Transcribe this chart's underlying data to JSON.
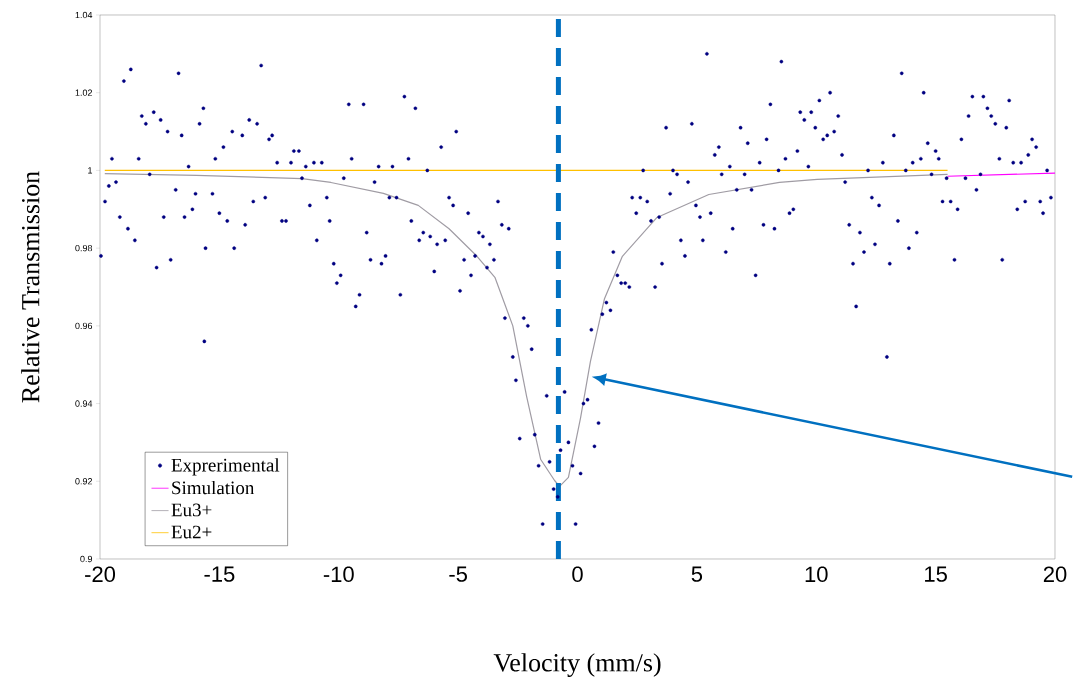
{
  "chart_data": {
    "type": "scatter",
    "xlabel": "Velocity (mm/s)",
    "ylabel": "Relative Transmission",
    "xlim": [
      -20,
      20
    ],
    "ylim": [
      0.9,
      1.04
    ],
    "xticks": [
      -20,
      -15,
      -10,
      -5,
      0,
      5,
      10,
      15,
      20
    ],
    "yticks": [
      0.9,
      0.92,
      0.94,
      0.96,
      0.98,
      1,
      1.02,
      1.04
    ],
    "grid": false,
    "legend": "bottom left",
    "ref_lines": [
      {
        "axis": "x",
        "value": -0.8,
        "color": "#0070c0",
        "line_style": "dashed"
      }
    ],
    "series": [
      {
        "name": "Exprerimental",
        "marker": "circle",
        "color": "#000080",
        "x": [
          -19.96,
          -19.79,
          -19.63,
          -19.5,
          -19.33,
          -19.17,
          -19.0,
          -18.83,
          -18.71,
          -18.54,
          -18.38,
          -18.25,
          -18.08,
          -17.92,
          -17.75,
          -17.63,
          -17.46,
          -17.33,
          -17.17,
          -17.04,
          -16.83,
          -16.71,
          -16.58,
          -16.46,
          -16.29,
          -16.13,
          -16.0,
          -15.83,
          -15.67,
          -15.63,
          -15.58,
          -15.29,
          -15.17,
          -15.0,
          -14.83,
          -14.67,
          -14.46,
          -14.38,
          -14.04,
          -13.92,
          -13.75,
          -13.58,
          -13.42,
          -13.25,
          -13.08,
          -12.92,
          -12.79,
          -12.58,
          -12.38,
          -12.21,
          -12.0,
          -11.88,
          -11.67,
          -11.54,
          -11.38,
          -11.21,
          -11.04,
          -10.92,
          -10.71,
          -10.5,
          -10.38,
          -10.21,
          -10.08,
          -9.92,
          -9.79,
          -9.58,
          -9.46,
          -9.29,
          -9.13,
          -8.96,
          -8.83,
          -8.67,
          -8.5,
          -8.33,
          -8.21,
          -8.04,
          -7.88,
          -7.75,
          -7.58,
          -7.42,
          -7.25,
          -7.08,
          -6.96,
          -6.79,
          -6.63,
          -6.46,
          -6.29,
          -6.17,
          -6.0,
          -5.88,
          -5.71,
          -5.54,
          -5.38,
          -5.21,
          -5.08,
          -4.92,
          -4.75,
          -4.58,
          -4.46,
          -4.29,
          -4.13,
          -3.96,
          -3.79,
          -3.67,
          -3.5,
          -3.33,
          -3.17,
          -3.04,
          -2.88,
          -2.71,
          -2.58,
          -2.42,
          -2.25,
          -2.08,
          -1.92,
          -1.79,
          -1.63,
          -1.46,
          -1.29,
          -1.17,
          -1.0,
          -0.83,
          -0.71,
          -0.54,
          -0.38,
          -0.21,
          -0.08,
          0.13,
          0.25,
          0.42,
          0.58,
          0.71,
          0.88,
          1.04,
          1.21,
          1.38,
          1.5,
          1.67,
          1.83,
          2.0,
          2.17,
          2.29,
          2.46,
          2.63,
          2.75,
          2.92,
          3.08,
          3.25,
          3.42,
          3.54,
          3.71,
          3.88,
          4.0,
          4.17,
          4.33,
          4.5,
          4.63,
          4.79,
          4.96,
          5.13,
          5.25,
          5.42,
          5.58,
          5.75,
          5.92,
          6.04,
          6.21,
          6.38,
          6.5,
          6.67,
          6.83,
          7.0,
          7.13,
          7.29,
          7.46,
          7.63,
          7.79,
          7.92,
          8.08,
          8.25,
          8.42,
          8.54,
          8.71,
          8.88,
          9.04,
          9.21,
          9.33,
          9.5,
          9.67,
          9.79,
          9.96,
          10.13,
          10.29,
          10.46,
          10.58,
          10.75,
          10.92,
          11.08,
          11.21,
          11.38,
          11.54,
          11.67,
          11.83,
          12.0,
          12.17,
          12.33,
          12.46,
          12.63,
          12.79,
          12.96,
          13.08,
          13.25,
          13.42,
          13.58,
          13.75,
          13.88,
          14.04,
          14.21,
          14.38,
          14.5,
          14.67,
          14.83,
          15.0,
          15.13,
          15.29,
          15.46,
          15.63,
          15.79,
          15.92,
          16.08,
          16.25,
          16.38,
          16.54,
          16.71,
          16.88,
          17.0,
          17.17,
          17.33,
          17.5,
          17.67,
          17.79,
          17.96,
          18.08,
          18.25,
          18.42,
          18.58,
          18.75,
          18.88,
          19.04,
          19.21,
          19.38,
          19.5,
          19.67,
          19.83
        ],
        "values": [
          0.978,
          0.992,
          0.996,
          1.003,
          0.997,
          0.988,
          1.023,
          0.985,
          1.026,
          0.982,
          1.003,
          1.014,
          1.012,
          0.999,
          1.015,
          0.975,
          1.013,
          0.988,
          1.01,
          0.977,
          0.995,
          1.025,
          1.009,
          0.988,
          1.001,
          0.99,
          0.994,
          1.012,
          1.016,
          0.956,
          0.98,
          0.994,
          1.003,
          0.989,
          1.006,
          0.987,
          1.01,
          0.98,
          1.009,
          0.986,
          1.013,
          0.992,
          1.012,
          1.027,
          0.993,
          1.008,
          1.009,
          1.002,
          0.987,
          0.987,
          1.002,
          1.005,
          1.005,
          0.998,
          1.001,
          0.991,
          1.002,
          0.982,
          1.002,
          0.993,
          0.987,
          0.976,
          0.971,
          0.973,
          0.998,
          1.017,
          1.003,
          0.965,
          0.968,
          1.017,
          0.984,
          0.977,
          0.997,
          1.001,
          0.976,
          0.978,
          0.993,
          1.001,
          0.993,
          0.968,
          1.019,
          1.003,
          0.987,
          1.016,
          0.982,
          0.984,
          1.0,
          0.983,
          0.974,
          0.981,
          1.006,
          0.982,
          0.993,
          0.991,
          1.01,
          0.969,
          0.977,
          0.989,
          0.973,
          0.978,
          0.984,
          0.983,
          0.975,
          0.981,
          0.977,
          0.992,
          0.986,
          0.962,
          0.985,
          0.952,
          0.946,
          0.931,
          0.962,
          0.96,
          0.954,
          0.932,
          0.924,
          0.909,
          0.942,
          0.925,
          0.918,
          0.916,
          0.928,
          0.943,
          0.93,
          0.924,
          0.909,
          0.922,
          0.94,
          0.941,
          0.959,
          0.929,
          0.935,
          0.963,
          0.966,
          0.964,
          0.979,
          0.973,
          0.971,
          0.971,
          0.97,
          0.993,
          0.989,
          0.993,
          1.0,
          0.992,
          0.987,
          0.97,
          0.988,
          0.976,
          1.011,
          0.994,
          1.0,
          0.999,
          0.982,
          0.978,
          0.997,
          1.012,
          0.991,
          0.988,
          0.982,
          1.03,
          0.989,
          1.004,
          1.006,
          0.999,
          0.979,
          1.001,
          0.985,
          0.995,
          1.011,
          0.999,
          1.007,
          0.995,
          0.973,
          1.002,
          0.986,
          1.008,
          1.017,
          0.985,
          1.0,
          1.028,
          1.003,
          0.989,
          0.99,
          1.005,
          1.015,
          1.013,
          1.001,
          1.015,
          1.011,
          1.018,
          1.008,
          1.009,
          1.02,
          1.01,
          1.014,
          1.004,
          0.997,
          0.986,
          0.976,
          0.965,
          0.984,
          0.979,
          1.0,
          0.993,
          0.981,
          0.991,
          1.002,
          0.952,
          0.976,
          1.009,
          0.987,
          1.025,
          1.0,
          0.98,
          1.002,
          0.984,
          1.003,
          1.02,
          1.007,
          0.999,
          1.005,
          1.003,
          0.992,
          0.998,
          0.992,
          0.977,
          0.99,
          1.008,
          0.998,
          1.014,
          1.019,
          0.995,
          0.999,
          1.019,
          1.016,
          1.014,
          1.012,
          1.003,
          0.977,
          1.011,
          1.018,
          1.002,
          0.99,
          1.002,
          0.992,
          1.004,
          1.008,
          1.006,
          0.992,
          0.989,
          1.0,
          0.993
        ]
      },
      {
        "name": "Simulation",
        "type": "line",
        "marker": "none",
        "line_style": "solid",
        "color": "#ff00ff",
        "x": [
          15.5,
          20
        ],
        "values": [
          0.9985,
          0.9993
        ]
      },
      {
        "name": "Eu3+",
        "type": "line",
        "marker": "none",
        "line_style": "solid",
        "color": "#a09ca4",
        "x": [
          -19.8,
          -15.96,
          -11.54,
          -10.33,
          -8.13,
          -6.67,
          -5.38,
          -4.21,
          -3.46,
          -2.71,
          -2.13,
          -1.54,
          -0.96,
          -0.75,
          -0.38,
          0.13,
          0.54,
          1.13,
          1.88,
          3.33,
          5.5,
          8.46,
          10.04,
          15.5
        ],
        "values": [
          0.9992,
          0.9987,
          0.9979,
          0.9969,
          0.9941,
          0.991,
          0.985,
          0.9779,
          0.9725,
          0.96,
          0.9418,
          0.9256,
          0.9202,
          0.9187,
          0.921,
          0.9364,
          0.9508,
          0.967,
          0.9779,
          0.9879,
          0.9938,
          0.9969,
          0.9977,
          0.999
        ]
      },
      {
        "name": "Eu2+",
        "type": "line",
        "marker": "none",
        "line_style": "solid",
        "color": "#ffc000",
        "x": [
          -19.8,
          15.5
        ],
        "values": [
          1,
          1
        ]
      }
    ]
  }
}
